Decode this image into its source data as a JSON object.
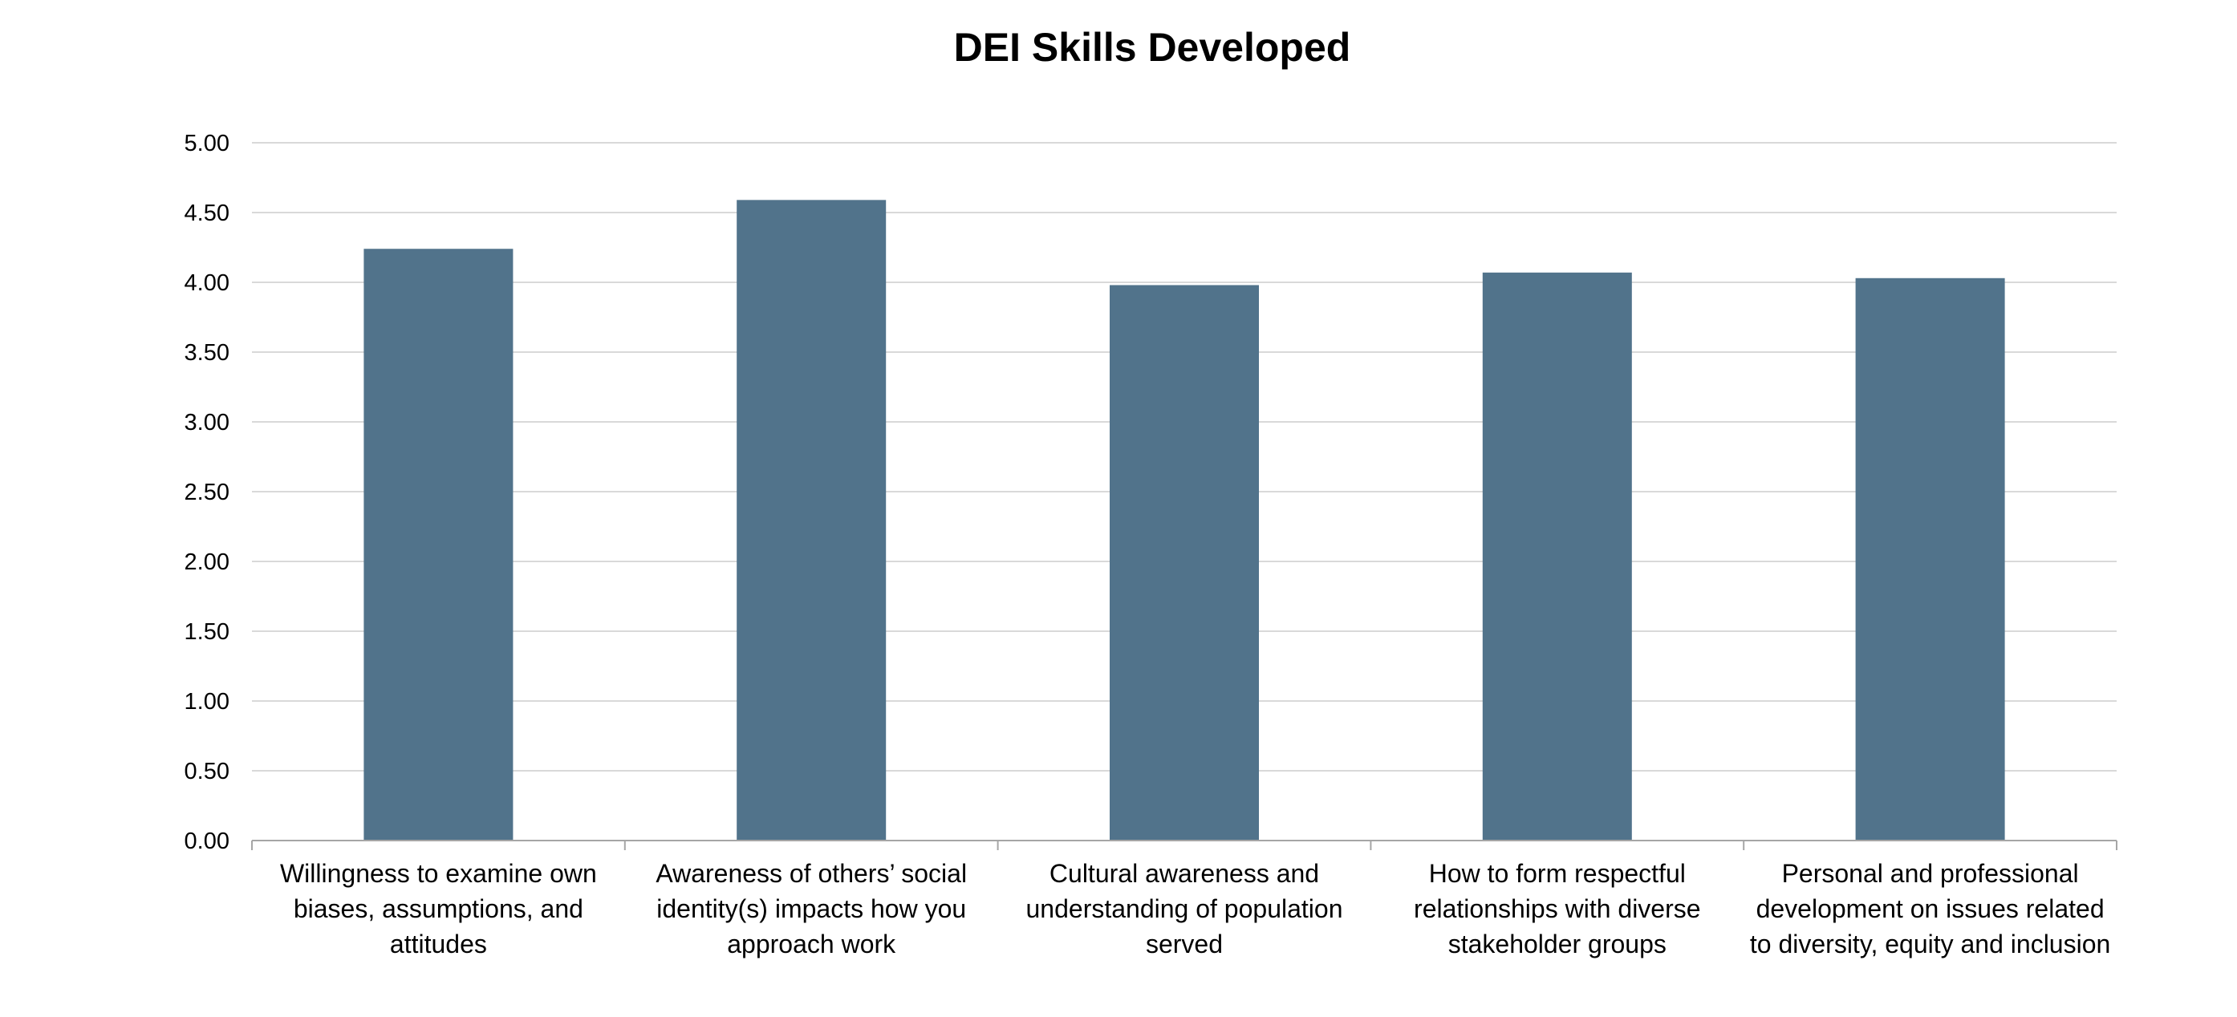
{
  "colors": {
    "bar": "#51738b",
    "grid": "#d9d9d9",
    "axis": "#a6a6a6",
    "text": "#000000"
  },
  "chart_data": {
    "type": "bar",
    "title": "DEI Skills Developed",
    "xlabel": "",
    "ylabel": "",
    "ylim": [
      0,
      5
    ],
    "y_ticks": [
      "0.00",
      "0.50",
      "1.00",
      "1.50",
      "2.00",
      "2.50",
      "3.00",
      "3.50",
      "4.00",
      "4.50",
      "5.00"
    ],
    "grid": true,
    "legend": "none",
    "categories": [
      "Willingness to examine own biases, assumptions, and attitudes",
      "Awareness of others’ social identity(s) impacts how you approach work",
      "Cultural awareness and understanding of population served",
      "How to form respectful relationships with diverse stakeholder groups",
      "Personal and professional development on issues related to diversity, equity and inclusion"
    ],
    "category_label_lines": [
      [
        "Willingness to examine own",
        "biases, assumptions, and",
        "attitudes"
      ],
      [
        "Awareness of others’ social",
        "identity(s) impacts how you",
        "approach work"
      ],
      [
        "Cultural awareness and",
        "understanding of population",
        "served"
      ],
      [
        "How to form respectful",
        "relationships with diverse",
        "stakeholder groups"
      ],
      [
        "Personal and professional",
        "development on issues related",
        "to diversity, equity and inclusion"
      ]
    ],
    "values": [
      4.24,
      4.59,
      3.98,
      4.07,
      4.03
    ]
  }
}
